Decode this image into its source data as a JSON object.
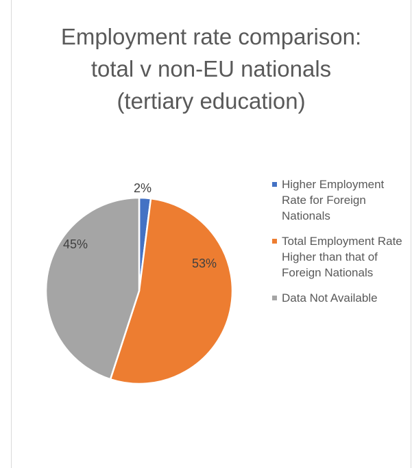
{
  "chart_data": {
    "type": "pie",
    "title_lines": [
      "Employment rate comparison:",
      "total v non-EU nationals",
      "(tertiary education)"
    ],
    "slices": [
      {
        "label": "Higher Employment Rate for Foreign Nationals",
        "value": 2,
        "data_label": "2%",
        "color": "#4472C4"
      },
      {
        "label": "Total Employment Rate Higher than that of Foreign Nationals",
        "value": 53,
        "data_label": "53%",
        "color": "#ED7D31"
      },
      {
        "label": "Data Not Available",
        "value": 45,
        "data_label": "45%",
        "color": "#A5A5A5"
      }
    ],
    "legend_position": "right"
  }
}
